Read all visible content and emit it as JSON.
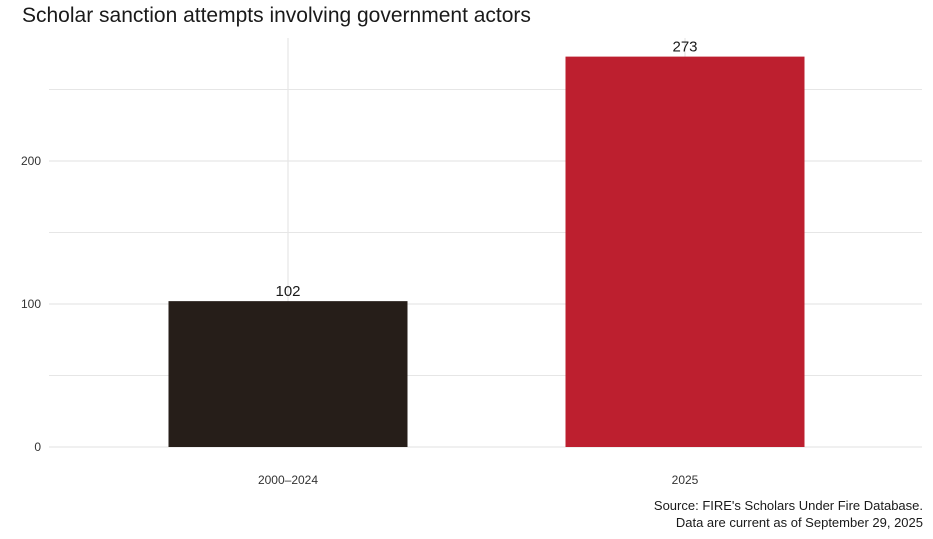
{
  "title": "Scholar sanction attempts involving government actors",
  "caption": {
    "line1": "Source: FIRE's Scholars Under Fire Database.",
    "line2": "Data are current as of September 29, 2025"
  },
  "chart_data": {
    "type": "bar",
    "title": "Scholar sanction attempts involving government actors",
    "xlabel": "",
    "ylabel": "",
    "categories": [
      "2000–2024",
      "2025"
    ],
    "values": [
      102,
      273
    ],
    "value_labels": [
      "102",
      "273"
    ],
    "colors": [
      "#261e19",
      "#bd1f2f"
    ],
    "ylim": [
      0,
      285
    ],
    "yticks": [
      0,
      100,
      200
    ],
    "ytick_labels": [
      "0",
      "100",
      "200"
    ],
    "grid": true,
    "legend": "none"
  },
  "colors": {
    "grid": "#e6e6e6",
    "text": "#1a1a1a"
  }
}
